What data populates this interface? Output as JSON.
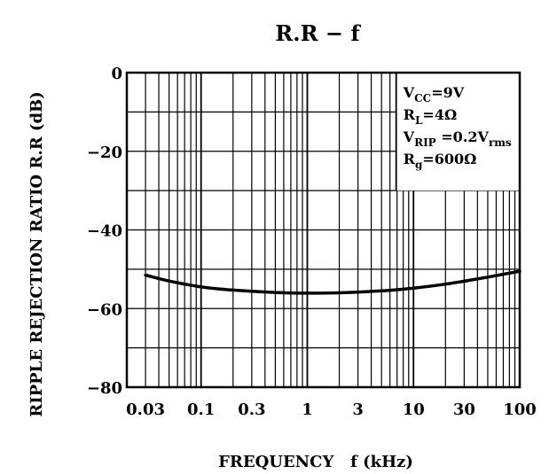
{
  "chart_data": {
    "type": "line",
    "title": "R.R − f",
    "xlabel": "FREQUENCY   f (kHz)",
    "ylabel": "RIPPLE REJECTION RATIO R.R (dB)",
    "x_scale": "log",
    "xlim": [
      0.02,
      100
    ],
    "ylim": [
      -80,
      0
    ],
    "grid": true,
    "x_tick_labels": [
      "0.03",
      "0.1",
      "0.3",
      "1",
      "3",
      "10",
      "30",
      "100"
    ],
    "x_tick_values": [
      0.03,
      0.1,
      0.3,
      1,
      3,
      10,
      30,
      100
    ],
    "y_tick_labels": [
      "0",
      "−20",
      "−40",
      "−60",
      "−80"
    ],
    "y_tick_values": [
      0,
      -20,
      -40,
      -60,
      -80
    ],
    "series": [
      {
        "color": "#000000",
        "x": [
          0.03,
          0.05,
          0.1,
          0.2,
          0.5,
          1,
          2,
          5,
          10,
          20,
          50,
          100
        ],
        "y": [
          -51.5,
          -53,
          -54.5,
          -55.3,
          -55.9,
          -56.1,
          -56,
          -55.5,
          -54.8,
          -53.8,
          -52,
          -50.5
        ]
      }
    ],
    "annotation": {
      "lines": [
        {
          "parts": [
            {
              "t": "V",
              "s": false
            },
            {
              "t": "CC",
              "s": true
            },
            {
              "t": "=9V",
              "s": false
            }
          ]
        },
        {
          "parts": [
            {
              "t": "R",
              "s": false
            },
            {
              "t": "L",
              "s": true
            },
            {
              "t": "=4Ω",
              "s": false
            }
          ]
        },
        {
          "parts": [
            {
              "t": "V",
              "s": false
            },
            {
              "t": "RIP",
              "s": true
            },
            {
              "t": " =0.2V",
              "s": false
            },
            {
              "t": "rms",
              "s": true
            }
          ]
        },
        {
          "parts": [
            {
              "t": "R",
              "s": false
            },
            {
              "t": "g",
              "s": true
            },
            {
              "t": "=600Ω",
              "s": false
            }
          ]
        }
      ]
    }
  }
}
